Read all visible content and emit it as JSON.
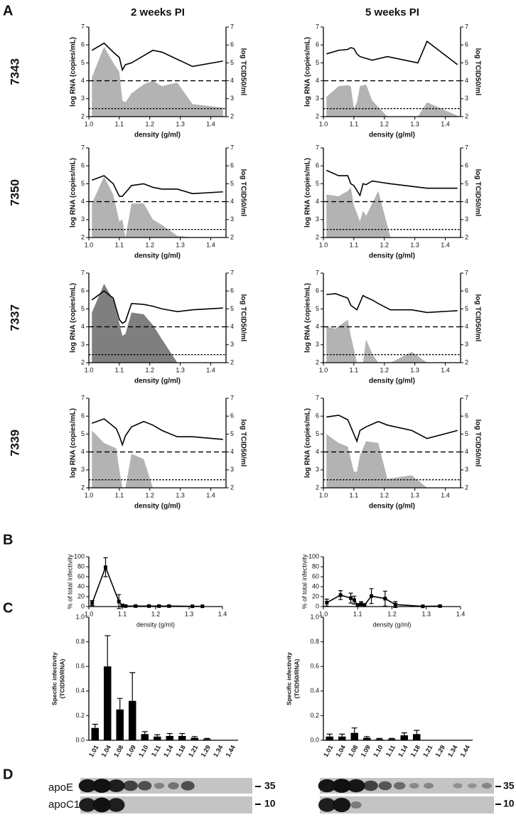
{
  "panel_labels": [
    "A",
    "B",
    "C",
    "D"
  ],
  "column_titles": [
    "2 weeks PI",
    "5 weeks PI"
  ],
  "row_labels": [
    "7343",
    "7350",
    "7337",
    "7339"
  ],
  "chart_data": [
    {
      "type": "line-area",
      "x": [
        1.01,
        1.05,
        1.08,
        1.1,
        1.11,
        1.12,
        1.14,
        1.18,
        1.21,
        1.24,
        1.29,
        1.34,
        1.44
      ],
      "series": [
        {
          "color": "#000000",
          "values": [
            5.7,
            6.1,
            5.6,
            5.3,
            4.6,
            4.9,
            5.0,
            5.4,
            5.7,
            5.6,
            5.2,
            4.8,
            5.1
          ]
        },
        {
          "color": "#b3b3b3",
          "kind": "area",
          "axis": "y2",
          "values": [
            4.2,
            5.9,
            5.0,
            4.5,
            2.9,
            2.8,
            3.3,
            3.8,
            4.0,
            3.7,
            3.9,
            2.7,
            2.5
          ]
        }
      ],
      "hlines": [
        {
          "value": 4,
          "style": "dashed"
        },
        {
          "value": 2.45,
          "style": "dotted"
        }
      ],
      "xlabel": "density (g/ml)",
      "ylabel": "log RNA (copies/mL)",
      "y2label": "log TCID50/ml",
      "xlim": [
        1.0,
        1.45
      ],
      "ylim": [
        2,
        7
      ],
      "y2lim": [
        2,
        7
      ],
      "xticks": [
        {
          "value": 1.0,
          "label": "1.0"
        },
        1.1,
        1.2,
        1.3,
        1.4
      ],
      "yticks": [
        2,
        3,
        4,
        5,
        6,
        7
      ],
      "y2ticks": [
        2,
        3,
        4,
        5,
        6,
        7
      ]
    },
    {
      "type": "line-area",
      "x": [
        1.01,
        1.05,
        1.08,
        1.09,
        1.1,
        1.11,
        1.12,
        1.14,
        1.16,
        1.21,
        1.31,
        1.34,
        1.44
      ],
      "series": [
        {
          "color": "#000000",
          "values": [
            5.5,
            5.7,
            5.75,
            5.85,
            5.8,
            5.5,
            5.35,
            5.25,
            5.15,
            5.35,
            5.0,
            6.2,
            4.9
          ]
        },
        {
          "color": "#b3b3b3",
          "kind": "area",
          "axis": "y2",
          "values": [
            3.1,
            3.7,
            3.75,
            3.7,
            2.45,
            2.8,
            3.7,
            3.8,
            2.9,
            2.0,
            2.0,
            2.8,
            2.05
          ]
        }
      ],
      "hlines": [
        {
          "value": 4,
          "style": "dashed"
        },
        {
          "value": 2.45,
          "style": "dotted"
        }
      ],
      "xlabel": "density (g/ml)",
      "ylabel": "log RNA (copies/mL)",
      "y2label": "log TCID50/ml",
      "xlim": [
        1.0,
        1.45
      ],
      "ylim": [
        2,
        7
      ],
      "y2lim": [
        2,
        7
      ],
      "xticks": [
        {
          "value": 1.0,
          "label": "1.0"
        },
        1.1,
        1.2,
        1.3,
        1.4
      ],
      "yticks": [
        2,
        3,
        4,
        5,
        6,
        7
      ],
      "y2ticks": [
        2,
        3,
        4,
        5,
        6,
        7
      ]
    },
    {
      "type": "line-area",
      "x": [
        1.01,
        1.05,
        1.08,
        1.1,
        1.11,
        1.12,
        1.14,
        1.18,
        1.21,
        1.24,
        1.29,
        1.34,
        1.44
      ],
      "series": [
        {
          "color": "#000000",
          "values": [
            5.2,
            5.45,
            5.0,
            4.3,
            4.3,
            4.5,
            4.9,
            5.0,
            4.8,
            4.7,
            4.7,
            4.45,
            4.55
          ]
        },
        {
          "color": "#b3b3b3",
          "kind": "area",
          "axis": "y2",
          "values": [
            3.9,
            5.4,
            4.4,
            2.9,
            3.0,
            2.0,
            3.9,
            3.9,
            3.0,
            2.7,
            2.1,
            2.0,
            2.0
          ]
        }
      ],
      "hlines": [
        {
          "value": 4,
          "style": "dashed"
        },
        {
          "value": 2.45,
          "style": "dotted"
        }
      ],
      "xlabel": "density (g/ml)",
      "ylabel": "log RNA (copies/mL)",
      "y2label": "log TCID50/ml",
      "xlim": [
        1.0,
        1.45
      ],
      "ylim": [
        2,
        7
      ],
      "y2lim": [
        2,
        7
      ],
      "xticks": [
        {
          "value": 1.0,
          "label": "1.0"
        },
        1.1,
        1.2,
        1.3,
        1.4
      ],
      "yticks": [
        2,
        3,
        4,
        5,
        6,
        7
      ],
      "y2ticks": [
        2,
        3,
        4,
        5,
        6,
        7
      ]
    },
    {
      "type": "line-area",
      "x": [
        1.01,
        1.05,
        1.08,
        1.09,
        1.1,
        1.12,
        1.13,
        1.14,
        1.16,
        1.18,
        1.22,
        1.34,
        1.44
      ],
      "series": [
        {
          "color": "#000000",
          "values": [
            5.75,
            5.45,
            5.45,
            5.0,
            4.9,
            4.35,
            5.0,
            4.95,
            5.15,
            5.1,
            5.0,
            4.75,
            4.75
          ]
        },
        {
          "color": "#b3b3b3",
          "kind": "area",
          "axis": "y2",
          "values": [
            4.4,
            4.3,
            4.6,
            4.8,
            3.8,
            2.9,
            3.5,
            3.2,
            3.9,
            4.6,
            2.0,
            2.0,
            2.0
          ]
        }
      ],
      "hlines": [
        {
          "value": 4,
          "style": "dashed"
        },
        {
          "value": 2.45,
          "style": "dotted"
        }
      ],
      "xlabel": "density (g/ml)",
      "ylabel": "log RNA (copies/mL)",
      "y2label": "log TCID50/ml",
      "xlim": [
        1.0,
        1.45
      ],
      "ylim": [
        2,
        7
      ],
      "y2lim": [
        2,
        7
      ],
      "xticks": [
        {
          "value": 1.0,
          "label": "1.0"
        },
        1.1,
        1.2,
        1.3,
        1.4
      ],
      "yticks": [
        2,
        3,
        4,
        5,
        6,
        7
      ],
      "y2ticks": [
        2,
        3,
        4,
        5,
        6,
        7
      ]
    },
    {
      "type": "line-area",
      "x": [
        1.01,
        1.05,
        1.08,
        1.1,
        1.11,
        1.12,
        1.14,
        1.18,
        1.21,
        1.24,
        1.29,
        1.34,
        1.44
      ],
      "series": [
        {
          "color": "#000000",
          "values": [
            5.5,
            6.0,
            5.6,
            4.4,
            4.2,
            4.3,
            5.3,
            5.25,
            5.15,
            5.0,
            4.85,
            4.95,
            5.05
          ]
        },
        {
          "color": "#7f7f7f",
          "kind": "area",
          "axis": "y2",
          "values": [
            4.8,
            6.4,
            5.5,
            4.2,
            3.5,
            3.6,
            4.8,
            4.7,
            4.1,
            3.3,
            2.0,
            2.0,
            2.0
          ]
        }
      ],
      "hlines": [
        {
          "value": 4,
          "style": "dashed"
        },
        {
          "value": 2.45,
          "style": "dotted"
        }
      ],
      "xlabel": "density (g/ml)",
      "ylabel": "log RNA (copies/mL)",
      "y2label": "log TCID50/ml",
      "xlim": [
        1.0,
        1.45
      ],
      "ylim": [
        2,
        7
      ],
      "y2lim": [
        2,
        7
      ],
      "xticks": [
        {
          "value": 1.0,
          "label": "1.0"
        },
        1.1,
        1.2,
        1.3,
        1.4
      ],
      "yticks": [
        2,
        3,
        4,
        5,
        6,
        7
      ],
      "y2ticks": [
        2,
        3,
        4,
        5,
        6,
        7
      ]
    },
    {
      "type": "line-area",
      "x": [
        1.01,
        1.04,
        1.08,
        1.09,
        1.11,
        1.13,
        1.14,
        1.16,
        1.18,
        1.22,
        1.29,
        1.34,
        1.44
      ],
      "series": [
        {
          "color": "#000000",
          "values": [
            5.8,
            5.85,
            5.6,
            5.2,
            4.95,
            5.75,
            5.65,
            5.5,
            5.3,
            4.95,
            4.95,
            4.8,
            4.9
          ]
        },
        {
          "color": "#b3b3b3",
          "kind": "area",
          "axis": "y2",
          "values": [
            4.0,
            3.9,
            4.4,
            3.5,
            2.0,
            2.0,
            3.3,
            2.5,
            2.0,
            2.0,
            2.6,
            2.0,
            2.0
          ]
        }
      ],
      "hlines": [
        {
          "value": 4,
          "style": "dashed"
        },
        {
          "value": 2.45,
          "style": "dotted"
        }
      ],
      "xlabel": "density (g/ml)",
      "ylabel": "log RNA (copies/mL)",
      "y2label": "log TCID50/ml",
      "xlim": [
        1.0,
        1.45
      ],
      "ylim": [
        2,
        7
      ],
      "y2lim": [
        2,
        7
      ],
      "xticks": [
        {
          "value": 1.0,
          "label": "1.0"
        },
        1.1,
        1.2,
        1.3,
        1.4
      ],
      "yticks": [
        2,
        3,
        4,
        5,
        6,
        7
      ],
      "y2ticks": [
        2,
        3,
        4,
        5,
        6,
        7
      ]
    },
    {
      "type": "line-area",
      "x": [
        1.01,
        1.05,
        1.09,
        1.1,
        1.11,
        1.12,
        1.14,
        1.18,
        1.21,
        1.24,
        1.29,
        1.34,
        1.44
      ],
      "series": [
        {
          "color": "#000000",
          "values": [
            5.6,
            5.85,
            5.3,
            4.9,
            4.4,
            4.9,
            5.4,
            5.7,
            5.5,
            5.2,
            4.85,
            4.85,
            4.7
          ]
        },
        {
          "color": "#b3b3b3",
          "kind": "area",
          "axis": "y2",
          "values": [
            5.2,
            4.5,
            4.2,
            3.0,
            2.0,
            2.0,
            3.9,
            3.6,
            2.0,
            2.0,
            2.0,
            2.0,
            2.0
          ]
        }
      ],
      "hlines": [
        {
          "value": 4,
          "style": "dashed"
        },
        {
          "value": 2.45,
          "style": "dotted"
        }
      ],
      "xlabel": "density (g/ml)",
      "ylabel": "log RNA (copies/mL)",
      "y2label": "log TCID50/ml",
      "xlim": [
        1.0,
        1.45
      ],
      "ylim": [
        2,
        7
      ],
      "y2lim": [
        2,
        7
      ],
      "xticks": [
        {
          "value": 1.0,
          "label": "1.0"
        },
        1.1,
        1.2,
        1.3,
        1.4
      ],
      "yticks": [
        2,
        3,
        4,
        5,
        6,
        7
      ],
      "y2ticks": [
        2,
        3,
        4,
        5,
        6,
        7
      ]
    },
    {
      "type": "line-area",
      "x": [
        1.01,
        1.05,
        1.08,
        1.1,
        1.11,
        1.12,
        1.14,
        1.18,
        1.21,
        1.29,
        1.34,
        1.44
      ],
      "series": [
        {
          "color": "#000000",
          "values": [
            5.95,
            6.05,
            5.8,
            5.0,
            4.6,
            5.2,
            5.4,
            5.7,
            5.5,
            5.2,
            4.75,
            5.2
          ]
        },
        {
          "color": "#b3b3b3",
          "kind": "area",
          "axis": "y2",
          "values": [
            5.0,
            4.5,
            4.3,
            2.9,
            2.9,
            3.8,
            4.6,
            4.5,
            2.5,
            2.7,
            2.0,
            2.0
          ]
        }
      ],
      "hlines": [
        {
          "value": 4,
          "style": "dashed"
        },
        {
          "value": 2.45,
          "style": "dotted"
        }
      ],
      "xlabel": "density (g/ml)",
      "ylabel": "log RNA (copies/mL)",
      "y2label": "log TCID50/ml",
      "xlim": [
        1.0,
        1.45
      ],
      "ylim": [
        2,
        7
      ],
      "y2lim": [
        2,
        7
      ],
      "xticks": [
        {
          "value": 1.0,
          "label": "1.0"
        },
        1.1,
        1.2,
        1.3,
        1.4
      ],
      "yticks": [
        2,
        3,
        4,
        5,
        6,
        7
      ],
      "y2ticks": [
        2,
        3,
        4,
        5,
        6,
        7
      ]
    },
    {
      "type": "line",
      "x": [
        1.01,
        1.05,
        1.09,
        1.1,
        1.11,
        1.14,
        1.18,
        1.21,
        1.24,
        1.31,
        1.34
      ],
      "values": [
        7,
        79,
        10,
        2,
        1,
        1,
        1,
        1,
        1,
        0.5,
        0.5
      ],
      "errors": [
        5,
        19,
        14,
        3,
        1,
        1,
        1,
        1,
        1,
        0.5,
        0.5
      ],
      "color": "#000000",
      "xlabel": "density (g/ml)",
      "ylabel": "% of total infectivity",
      "xlim": [
        1.0,
        1.4
      ],
      "ylim": [
        0,
        100
      ],
      "xticks": [
        {
          "value": 1.0,
          "label": "1.0"
        },
        1.1,
        1.2,
        1.3,
        1.4
      ],
      "yticks": [
        0,
        20,
        40,
        60,
        80,
        100
      ]
    },
    {
      "type": "line",
      "x": [
        1.01,
        1.05,
        1.08,
        1.09,
        1.1,
        1.11,
        1.12,
        1.14,
        1.18,
        1.21,
        1.29,
        1.34
      ],
      "values": [
        8,
        23,
        17,
        13,
        3,
        5,
        3,
        21,
        16,
        4,
        0.5,
        1
      ],
      "errors": [
        7,
        9,
        10,
        8,
        3,
        5,
        3,
        15,
        15,
        6,
        0.5,
        1
      ],
      "color": "#000000",
      "xlabel": "density (g/ml)",
      "ylabel": "% of total infectivity",
      "xlim": [
        1.0,
        1.4
      ],
      "ylim": [
        0,
        100
      ],
      "xticks": [
        {
          "value": 1.0,
          "label": "1.0"
        },
        1.1,
        1.2,
        1.3,
        1.4
      ],
      "yticks": [
        0,
        20,
        40,
        60,
        80,
        100
      ]
    },
    {
      "type": "bar",
      "categories": [
        "1.01",
        "1.04",
        "1.08",
        "1.09",
        "1.10",
        "1.11",
        "1.14",
        "1.18",
        "1.21",
        "1.29",
        "1.34",
        "1.44"
      ],
      "values": [
        0.1,
        0.6,
        0.25,
        0.32,
        0.05,
        0.03,
        0.035,
        0.035,
        0.02,
        0.01,
        null,
        null
      ],
      "errors": [
        0.03,
        0.25,
        0.09,
        0.23,
        0.02,
        0.015,
        0.02,
        0.02,
        0.01,
        0.005,
        null,
        null
      ],
      "color": "#000000",
      "ylabel": [
        "Specific infectivity",
        "(TCID50/RNA)"
      ],
      "ylim": [
        0,
        1
      ],
      "yticks": [
        {
          "value": 0,
          "label": "0.0"
        },
        0.2,
        0.4,
        0.6,
        0.8,
        {
          "value": 1,
          "label": "1.0"
        }
      ]
    },
    {
      "type": "bar",
      "categories": [
        "1.01",
        "1.04",
        "1.08",
        "1.09",
        "1.10",
        "1.11",
        "1.14",
        "1.18",
        "1.21",
        "1.29",
        "1.34",
        "1.44"
      ],
      "values": [
        0.03,
        0.03,
        0.06,
        0.02,
        0.01,
        0.01,
        0.04,
        0.05,
        null,
        null,
        null,
        null
      ],
      "errors": [
        0.02,
        0.02,
        0.04,
        0.01,
        0.005,
        0.005,
        0.02,
        0.03,
        null,
        null,
        null,
        null
      ],
      "color": "#000000",
      "ylabel": [
        "Specific infectivity",
        "(TCID50/RNA)"
      ],
      "ylim": [
        0,
        1
      ],
      "yticks": [
        {
          "value": 0,
          "label": "0.0"
        },
        0.2,
        0.4,
        0.6,
        0.8,
        {
          "value": 1,
          "label": "1.0"
        }
      ]
    }
  ],
  "blot": {
    "rows": [
      "apoE",
      "apoC1"
    ],
    "markers": [
      "35",
      "10"
    ]
  }
}
